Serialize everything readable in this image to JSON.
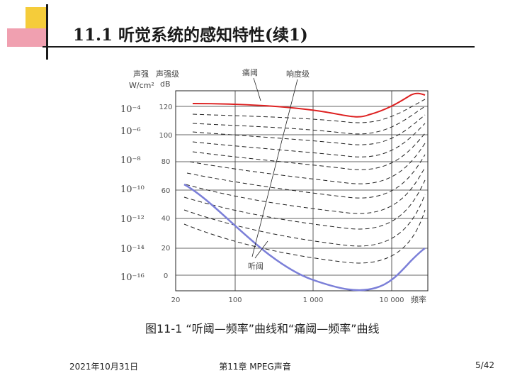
{
  "slide": {
    "title": "11.1 听觉系统的感知特性(续1)",
    "caption": "图11-1 “听阈—频率”曲线和“痛阈—频率”曲线"
  },
  "figure": {
    "labels": {
      "intensity_header": "声强",
      "intensity_unit": "W/cm²",
      "level_header": "声强级",
      "level_unit": "dB",
      "pain_threshold": "痛阈",
      "loudness_level": "响度级",
      "hearing_threshold": "听阈",
      "frequency": "频率"
    },
    "intensity_ticks": [
      "10⁻⁴",
      "10⁻⁶",
      "10⁻⁸",
      "10⁻¹⁰",
      "10⁻¹²",
      "10⁻¹⁴",
      "10⁻¹⁶"
    ],
    "db_ticks": [
      "120",
      "100",
      "80",
      "60",
      "40",
      "20",
      "0"
    ],
    "freq_ticks": [
      "20",
      "100",
      "1 000",
      "10 000"
    ],
    "colors": {
      "pain_curve": "#dd2020",
      "hearing_curve": "#7b7fd8",
      "title_accent": "#f5cc3a",
      "title_block": "#f0a0b0"
    }
  },
  "footer": {
    "date": "2021年10月31日",
    "center": "第11章 MPEG声音",
    "page": "5/42"
  }
}
